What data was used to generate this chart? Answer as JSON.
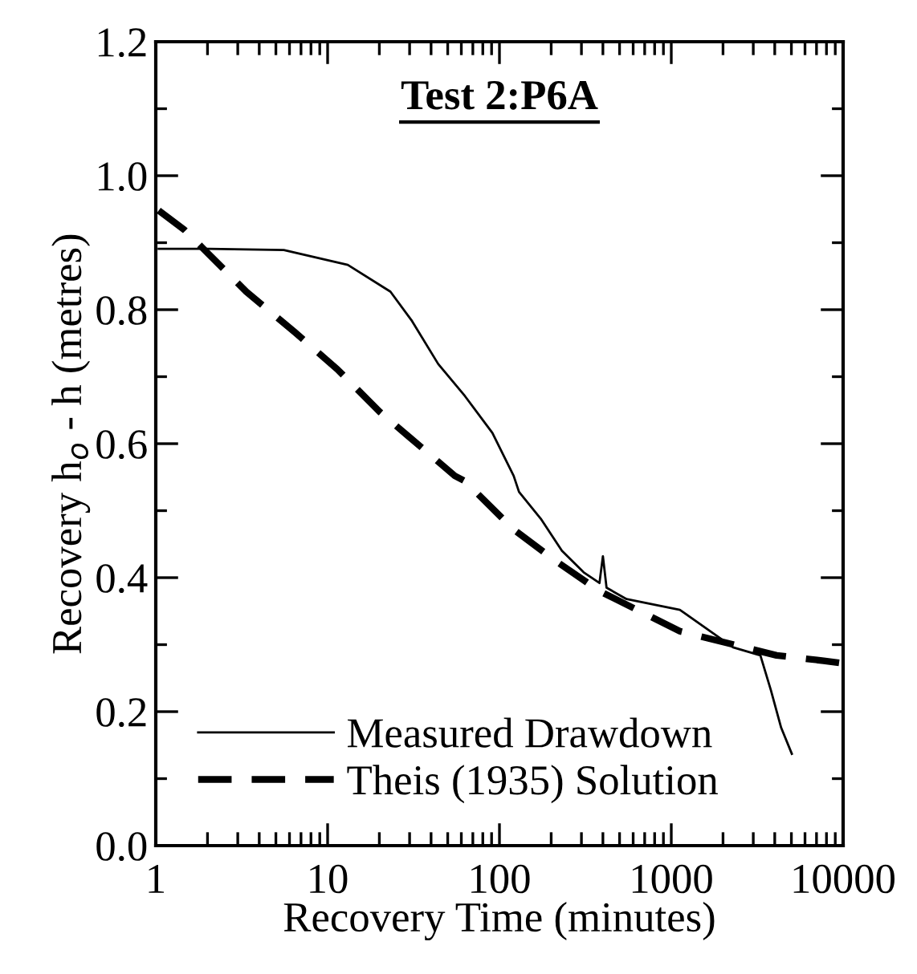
{
  "chart_data": {
    "type": "line",
    "title": "Test 2:P6A",
    "xlabel": "Recovery Time (minutes)",
    "ylabel": "Recovery h$_{o}$ - h (metres)",
    "log": "x",
    "xlim": [
      1,
      10000
    ],
    "xticks": [
      1,
      {
        "value": 2,
        "label": null
      },
      {
        "value": 3,
        "label": null
      },
      {
        "value": 4,
        "label": null
      },
      {
        "value": 5,
        "label": null
      },
      {
        "value": 6,
        "label": null
      },
      {
        "value": 7,
        "label": null
      },
      {
        "value": 8,
        "label": null
      },
      {
        "value": 9,
        "label": null
      },
      10,
      {
        "value": 20,
        "label": null
      },
      {
        "value": 30,
        "label": null
      },
      {
        "value": 40,
        "label": null
      },
      {
        "value": 50,
        "label": null
      },
      {
        "value": 60,
        "label": null
      },
      {
        "value": 70,
        "label": null
      },
      {
        "value": 80,
        "label": null
      },
      {
        "value": 90,
        "label": null
      },
      100,
      {
        "value": 200,
        "label": null
      },
      {
        "value": 300,
        "label": null
      },
      {
        "value": 400,
        "label": null
      },
      {
        "value": 500,
        "label": null
      },
      {
        "value": 600,
        "label": null
      },
      {
        "value": 700,
        "label": null
      },
      {
        "value": 800,
        "label": null
      },
      {
        "value": 900,
        "label": null
      },
      1000,
      {
        "value": 2000,
        "label": null
      },
      {
        "value": 3000,
        "label": null
      },
      {
        "value": 4000,
        "label": null
      },
      {
        "value": 5000,
        "label": null
      },
      {
        "value": 6000,
        "label": null
      },
      {
        "value": 7000,
        "label": null
      },
      {
        "value": 8000,
        "label": null
      },
      {
        "value": 9000,
        "label": null
      },
      10000
    ],
    "ylim": [
      0,
      1.2
    ],
    "yticks": [
      {
        "value": 0,
        "label": "0.0"
      },
      {
        "value": 0.1,
        "label": null
      },
      {
        "value": 0.2,
        "label": "0.2"
      },
      {
        "value": 0.3,
        "label": null
      },
      {
        "value": 0.4,
        "label": "0.4"
      },
      {
        "value": 0.5,
        "label": null
      },
      {
        "value": 0.6,
        "label": "0.6"
      },
      {
        "value": 0.7,
        "label": null
      },
      {
        "value": 0.8,
        "label": "0.8"
      },
      {
        "value": 0.9,
        "label": null
      },
      {
        "value": 1.0,
        "label": "1.0"
      },
      {
        "value": 1.1,
        "label": null
      },
      {
        "value": 1.2,
        "label": "1.2"
      }
    ],
    "grid": false,
    "legend": "bottom left",
    "series": [
      {
        "name": "Measured Drawdown",
        "color": "#000000",
        "line_style": "solid",
        "x": [
          1.04,
          2.03,
          5.56,
          13.1,
          23.2,
          31,
          44,
          63,
          91,
          121,
          130,
          174,
          231,
          309,
          382,
          400,
          420,
          549,
          1122,
          2290,
          3300,
          3800,
          4360,
          5030
        ],
        "values": [
          0.891,
          0.891,
          0.889,
          0.867,
          0.827,
          0.783,
          0.719,
          0.671,
          0.616,
          0.552,
          0.528,
          0.488,
          0.44,
          0.408,
          0.392,
          0.432,
          0.385,
          0.368,
          0.352,
          0.296,
          0.284,
          0.232,
          0.176,
          0.137
        ]
      },
      {
        "name": "Theis (1935) Solution",
        "color": "#000000",
        "line_style": "dashed",
        "x": [
          1.04,
          1.47,
          3.36,
          6.4,
          11.4,
          20.2,
          55,
          63,
          121,
          215,
          382,
          1122,
          4100,
          7700,
          10000
        ],
        "values": [
          0.948,
          0.919,
          0.827,
          0.767,
          0.711,
          0.647,
          0.552,
          0.544,
          0.472,
          0.424,
          0.38,
          0.32,
          0.284,
          0.276,
          0.272
        ]
      }
    ]
  }
}
